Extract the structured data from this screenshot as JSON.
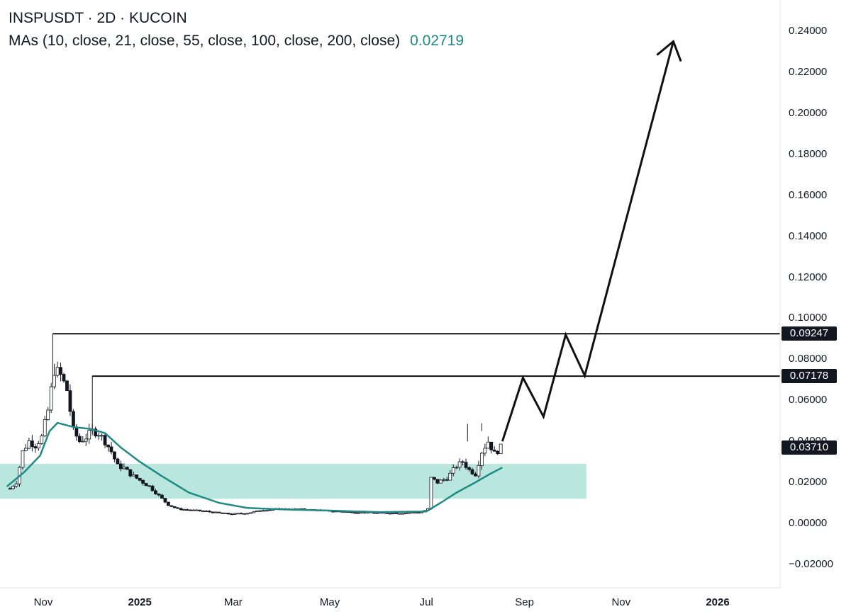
{
  "header": {
    "title": "INSPUSDT · 2D · KUCOIN",
    "indicator_label": "MAs (10, close, 21, close, 55, close, 100, close, 200, close)",
    "indicator_value": "0.02719"
  },
  "colors": {
    "ma_line": "#1f8a85",
    "support_zone": "#b9e6dd",
    "candle_up": "#ffffff",
    "candle_down": "#131722",
    "projection": "#111111",
    "level_line": "#111111",
    "axis_text": "#131722"
  },
  "chart_data": {
    "type": "candlestick",
    "symbol": "INSPUSDT",
    "interval": "2D",
    "exchange": "KUCOIN",
    "ylim": [
      -0.03,
      0.25
    ],
    "y_ticks": [
      "0.24000",
      "0.22000",
      "0.20000",
      "0.18000",
      "0.16000",
      "0.14000",
      "0.12000",
      "0.10000",
      "0.08000",
      "0.06000",
      "0.04000",
      "0.02000",
      "0.00000",
      "−0.02000"
    ],
    "x_ticks": [
      {
        "label": "Nov",
        "date": "2024-11-01",
        "year": false
      },
      {
        "label": "2025",
        "date": "2025-01-01",
        "year": true
      },
      {
        "label": "Mar",
        "date": "2025-03-01",
        "year": false
      },
      {
        "label": "May",
        "date": "2025-05-01",
        "year": false
      },
      {
        "label": "Jul",
        "date": "2025-07-01",
        "year": false
      },
      {
        "label": "Sep",
        "date": "2025-09-01",
        "year": false
      },
      {
        "label": "Nov",
        "date": "2025-11-01",
        "year": false
      },
      {
        "label": "2026",
        "date": "2026-01-01",
        "year": true
      }
    ],
    "price_path": [
      [
        "2024-10-11",
        0.017
      ],
      [
        "2024-10-15",
        0.02
      ],
      [
        "2024-10-19",
        0.035
      ],
      [
        "2024-10-23",
        0.04
      ],
      [
        "2024-10-27",
        0.038
      ],
      [
        "2024-10-31",
        0.042
      ],
      [
        "2024-11-04",
        0.055
      ],
      [
        "2024-11-08",
        0.075
      ],
      [
        "2024-11-12",
        0.072
      ],
      [
        "2024-11-16",
        0.065
      ],
      [
        "2024-11-20",
        0.045
      ],
      [
        "2024-11-24",
        0.04
      ],
      [
        "2024-11-28",
        0.042
      ],
      [
        "2024-12-02",
        0.045
      ],
      [
        "2024-12-06",
        0.044
      ],
      [
        "2024-12-10",
        0.04
      ],
      [
        "2024-12-14",
        0.035
      ],
      [
        "2024-12-18",
        0.028
      ],
      [
        "2024-12-22",
        0.027
      ],
      [
        "2024-12-26",
        0.024
      ],
      [
        "2024-12-30",
        0.022
      ],
      [
        "2025-01-03",
        0.02
      ],
      [
        "2025-01-07",
        0.018
      ],
      [
        "2025-01-11",
        0.015
      ],
      [
        "2025-01-15",
        0.012
      ],
      [
        "2025-01-19",
        0.009
      ],
      [
        "2025-01-25",
        0.007
      ],
      [
        "2025-02-01",
        0.0065
      ],
      [
        "2025-02-10",
        0.006
      ],
      [
        "2025-02-20",
        0.005
      ],
      [
        "2025-02-28",
        0.0045
      ],
      [
        "2025-03-10",
        0.005
      ],
      [
        "2025-03-20",
        0.0065
      ],
      [
        "2025-04-01",
        0.007
      ],
      [
        "2025-04-15",
        0.0068
      ],
      [
        "2025-05-01",
        0.006
      ],
      [
        "2025-05-15",
        0.0055
      ],
      [
        "2025-06-01",
        0.005
      ],
      [
        "2025-06-15",
        0.005
      ],
      [
        "2025-06-28",
        0.0055
      ],
      [
        "2025-07-02",
        0.007
      ],
      [
        "2025-07-04",
        0.022
      ],
      [
        "2025-07-08",
        0.02
      ],
      [
        "2025-07-14",
        0.022
      ],
      [
        "2025-07-20",
        0.028
      ],
      [
        "2025-07-24",
        0.03
      ],
      [
        "2025-07-28",
        0.026
      ],
      [
        "2025-08-01",
        0.024
      ],
      [
        "2025-08-05",
        0.035
      ],
      [
        "2025-08-09",
        0.04
      ],
      [
        "2025-08-13",
        0.034
      ],
      [
        "2025-08-17",
        0.037
      ]
    ],
    "ma": {
      "label": "MA (shown)",
      "value": 0.02719,
      "points": [
        [
          "2024-10-09",
          0.018
        ],
        [
          "2024-10-20",
          0.025
        ],
        [
          "2024-10-30",
          0.033
        ],
        [
          "2024-11-05",
          0.045
        ],
        [
          "2024-11-10",
          0.049
        ],
        [
          "2024-11-20",
          0.047
        ],
        [
          "2024-12-01",
          0.046
        ],
        [
          "2024-12-10",
          0.044
        ],
        [
          "2024-12-20",
          0.037
        ],
        [
          "2025-01-01",
          0.03
        ],
        [
          "2025-01-15",
          0.023
        ],
        [
          "2025-02-01",
          0.015
        ],
        [
          "2025-02-20",
          0.01
        ],
        [
          "2025-03-10",
          0.0075
        ],
        [
          "2025-04-01",
          0.0068
        ],
        [
          "2025-05-01",
          0.0062
        ],
        [
          "2025-06-01",
          0.0055
        ],
        [
          "2025-07-01",
          0.0058
        ],
        [
          "2025-07-10",
          0.01
        ],
        [
          "2025-07-20",
          0.015
        ],
        [
          "2025-08-01",
          0.02
        ],
        [
          "2025-08-10",
          0.024
        ],
        [
          "2025-08-18",
          0.0272
        ]
      ]
    },
    "support_zone": {
      "from": "2024-10-01",
      "to": "2025-10-10",
      "low": 0.012,
      "high": 0.029
    },
    "horizontal_levels": [
      {
        "value": 0.09247,
        "from": "2024-11-07",
        "label": "0.09247"
      },
      {
        "value": 0.07178,
        "from": "2024-12-02",
        "label": "0.07178"
      }
    ],
    "projection_path": [
      [
        "2025-08-18",
        0.04
      ],
      [
        "2025-08-31",
        0.071
      ],
      [
        "2025-09-13",
        0.052
      ],
      [
        "2025-09-27",
        0.092
      ],
      [
        "2025-10-09",
        0.072
      ],
      [
        "2025-12-04",
        0.235
      ]
    ],
    "current_price": {
      "value": 0.0371,
      "label": "0.03710"
    }
  }
}
